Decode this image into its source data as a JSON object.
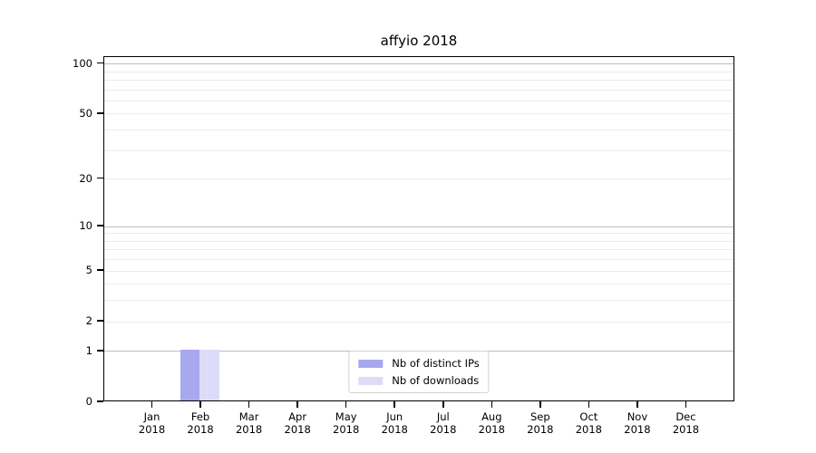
{
  "chart_data": {
    "type": "bar",
    "title": "affyio 2018",
    "categories": [
      "Jan",
      "Feb",
      "Mar",
      "Apr",
      "May",
      "Jun",
      "Jul",
      "Aug",
      "Sep",
      "Oct",
      "Nov",
      "Dec"
    ],
    "category_year": "2018",
    "series": [
      {
        "name": "Nb of distinct IPs",
        "color": "#a8a8f0",
        "values": [
          0,
          1,
          0,
          0,
          0,
          0,
          0,
          0,
          0,
          0,
          0,
          0
        ]
      },
      {
        "name": "Nb of downloads",
        "color": "#dcdcf8",
        "values": [
          0,
          1,
          0,
          0,
          0,
          0,
          0,
          0,
          0,
          0,
          0,
          0
        ]
      }
    ],
    "yscale": "log1p",
    "ylim": [
      0,
      110
    ],
    "yticks": [
      0,
      1,
      2,
      5,
      10,
      20,
      50,
      100
    ],
    "grid_major_values": [
      1,
      10,
      100
    ],
    "grid_minor_values": [
      3,
      4,
      6,
      7,
      8,
      9,
      30,
      40,
      60,
      70,
      80,
      90
    ],
    "grid": true,
    "legend_position": "lower center"
  },
  "colors": {
    "background": "#ffffff",
    "spine": "#000000",
    "text": "#000000",
    "grid_major": "#bdbdbd",
    "grid_minor": "#ebebeb",
    "legend_border": "#d2d2d2",
    "bar_distinct_ips": "#a8a8f0",
    "bar_downloads": "#dcdcf8"
  }
}
